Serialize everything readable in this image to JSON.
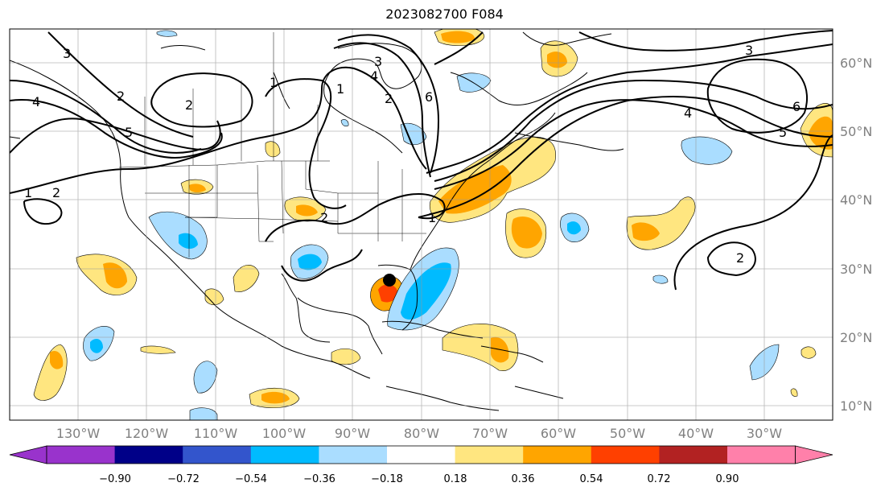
{
  "title": "2023082700 F084",
  "lat_labels": [
    "60°N",
    "50°N",
    "40°N",
    "30°N",
    "20°N",
    "10°N"
  ],
  "lon_labels": [
    "130°W",
    "120°W",
    "110°W",
    "100°W",
    "90°W",
    "80°W",
    "70°W",
    "60°W",
    "50°W",
    "40°W",
    "30°W"
  ],
  "colorbar": {
    "ticks": [
      "−0.90",
      "−0.72",
      "−0.54",
      "−0.36",
      "−0.18",
      "0.18",
      "0.36",
      "0.54",
      "0.72",
      "0.90"
    ],
    "colors": [
      "#9933cc",
      "#000088",
      "#3355cc",
      "#00bbff",
      "#aaddff",
      "#ffffff",
      "#ffe680",
      "#ffa500",
      "#ff4000",
      "#b22222",
      "#ff80aa"
    ]
  },
  "contour_labels": [
    "3",
    "2",
    "4",
    "5",
    "1",
    "2",
    "2",
    "1",
    "3",
    "4",
    "3",
    "5",
    "6",
    "2",
    "1",
    "2",
    "1",
    "2",
    "4",
    "6"
  ],
  "storm_marker": {
    "lat": 28.3,
    "lon": -84.5
  }
}
